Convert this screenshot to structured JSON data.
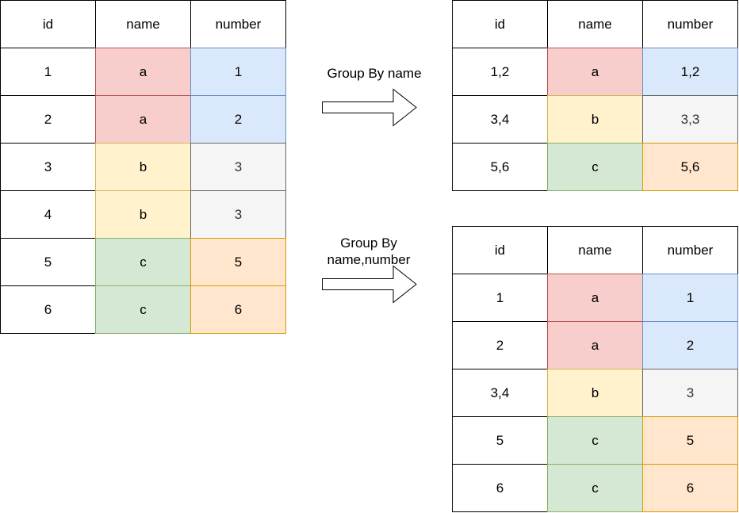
{
  "colors": {
    "a": {
      "fill": "#f8cecc",
      "stroke": "#b85450"
    },
    "b": {
      "fill": "#fff2cc",
      "stroke": "#d6b656"
    },
    "c": {
      "fill": "#d5e8d4",
      "stroke": "#82b366"
    },
    "blue": {
      "fill": "#dae8fc",
      "stroke": "#6c8ebf"
    },
    "gray": {
      "fill": "#f5f5f5",
      "stroke": "#666666",
      "text": "#333333"
    },
    "orange": {
      "fill": "#ffe6cc",
      "stroke": "#d79b00"
    },
    "plain": {
      "fill": "#ffffff",
      "stroke": "#000000"
    }
  },
  "source_table": {
    "headers": [
      "id",
      "name",
      "number"
    ],
    "rows": [
      {
        "id": "1",
        "name": "a",
        "number": "1",
        "name_color": "a",
        "number_color": "blue"
      },
      {
        "id": "2",
        "name": "a",
        "number": "2",
        "name_color": "a",
        "number_color": "blue"
      },
      {
        "id": "3",
        "name": "b",
        "number": "3",
        "name_color": "b",
        "number_color": "gray"
      },
      {
        "id": "4",
        "name": "b",
        "number": "3",
        "name_color": "b",
        "number_color": "gray"
      },
      {
        "id": "5",
        "name": "c",
        "number": "5",
        "name_color": "c",
        "number_color": "orange"
      },
      {
        "id": "6",
        "name": "c",
        "number": "6",
        "name_color": "c",
        "number_color": "orange"
      }
    ]
  },
  "group_by_name": {
    "label": "Group By name",
    "headers": [
      "id",
      "name",
      "number"
    ],
    "rows": [
      {
        "id": "1,2",
        "name": "a",
        "number": "1,2",
        "name_color": "a",
        "number_color": "blue"
      },
      {
        "id": "3,4",
        "name": "b",
        "number": "3,3",
        "name_color": "b",
        "number_color": "gray"
      },
      {
        "id": "5,6",
        "name": "c",
        "number": "5,6",
        "name_color": "c",
        "number_color": "orange"
      }
    ]
  },
  "group_by_name_number": {
    "label_line1": "Group By",
    "label_line2": "name,number",
    "headers": [
      "id",
      "name",
      "number"
    ],
    "rows": [
      {
        "id": "1",
        "name": "a",
        "number": "1",
        "name_color": "a",
        "number_color": "blue"
      },
      {
        "id": "2",
        "name": "a",
        "number": "2",
        "name_color": "a",
        "number_color": "blue"
      },
      {
        "id": "3,4",
        "name": "b",
        "number": "3",
        "name_color": "b",
        "number_color": "gray"
      },
      {
        "id": "5",
        "name": "c",
        "number": "5",
        "name_color": "c",
        "number_color": "orange"
      },
      {
        "id": "6",
        "name": "c",
        "number": "6",
        "name_color": "c",
        "number_color": "orange"
      }
    ]
  }
}
